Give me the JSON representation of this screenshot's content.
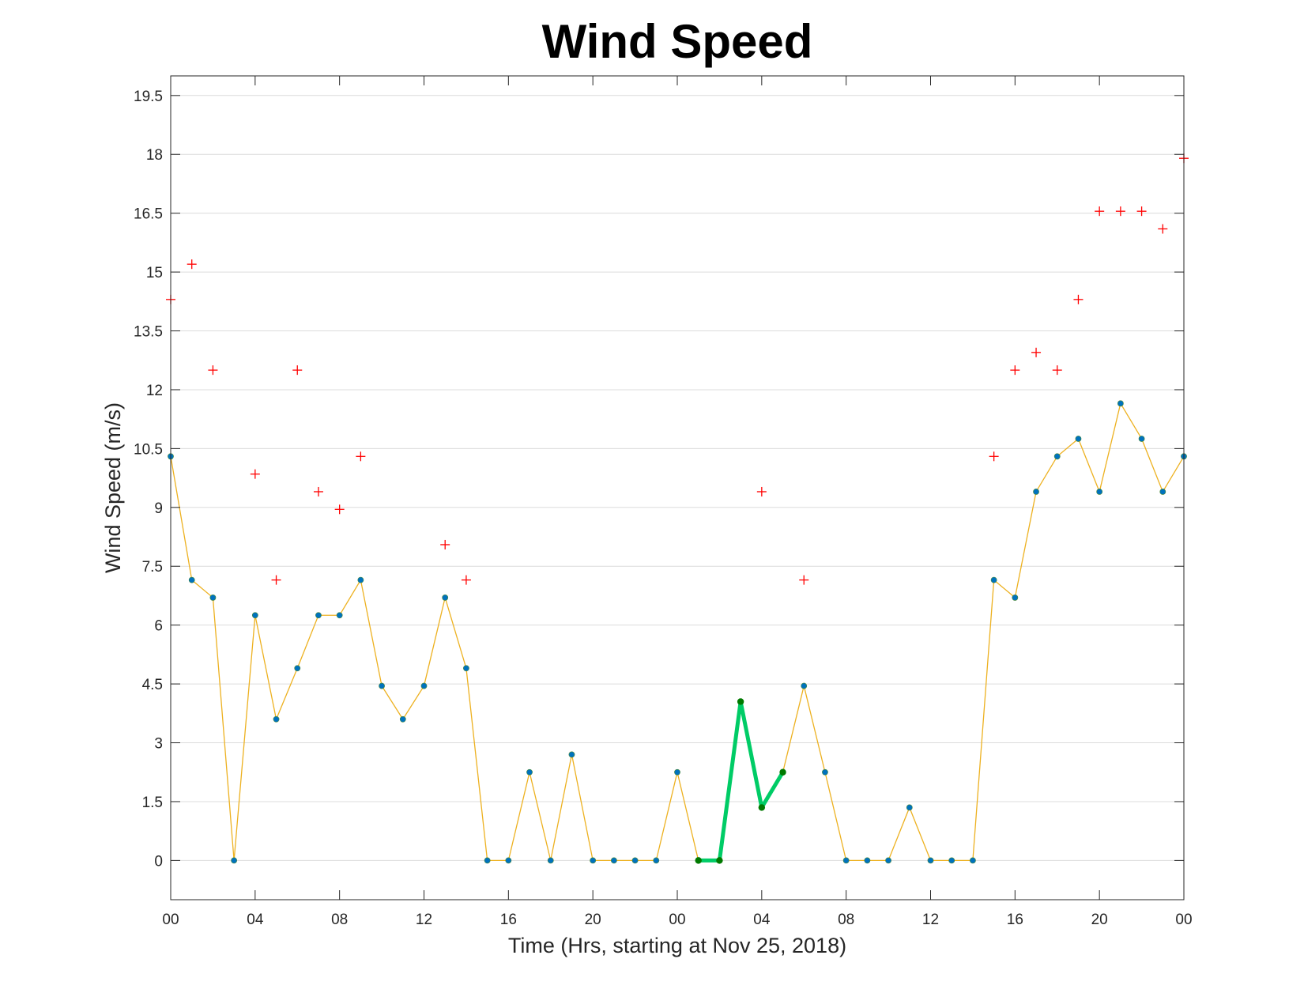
{
  "chart_data": {
    "type": "line",
    "title": "Wind Speed",
    "xlabel": "Time (Hrs, starting at Nov 25, 2018)",
    "ylabel": "Wind Speed (m/s)",
    "xlim": [
      0,
      48
    ],
    "ylim": [
      -1,
      20
    ],
    "x_ticks": [
      0,
      4,
      8,
      12,
      16,
      20,
      24,
      28,
      32,
      36,
      40,
      44,
      48
    ],
    "x_tick_labels": [
      "00",
      "04",
      "08",
      "12",
      "16",
      "20",
      "00",
      "04",
      "08",
      "12",
      "16",
      "20",
      "00"
    ],
    "y_ticks": [
      0,
      1.5,
      3,
      4.5,
      6,
      7.5,
      9,
      10.5,
      12,
      13.5,
      15,
      16.5,
      18,
      19.5
    ],
    "y_tick_labels": [
      "0",
      "1.5",
      "3",
      "4.5",
      "6",
      "7.5",
      "9",
      "10.5",
      "12",
      "13.5",
      "15",
      "16.5",
      "18",
      "19.5"
    ],
    "grid": true,
    "series": [
      {
        "style": "line-with-dots",
        "line_color": "#edb120",
        "marker_color": "#0072bd",
        "x": [
          0,
          1,
          2,
          3,
          4,
          5,
          6,
          7,
          8,
          9,
          10,
          11,
          12,
          13,
          14,
          15,
          16,
          17,
          18,
          19,
          20,
          21,
          22,
          23,
          24,
          25,
          26,
          27,
          28,
          29,
          30,
          31,
          32,
          33,
          34,
          35,
          36,
          37,
          38,
          39,
          40,
          41,
          42,
          43,
          44,
          45,
          46,
          47,
          48
        ],
        "values": [
          10.3,
          7.15,
          6.7,
          0,
          6.25,
          3.6,
          4.9,
          6.25,
          6.25,
          7.15,
          4.45,
          3.6,
          4.45,
          6.7,
          4.9,
          0,
          0,
          2.25,
          0,
          2.7,
          0,
          0,
          0,
          0,
          2.25,
          0,
          0,
          4.05,
          1.35,
          2.25,
          4.45,
          2.25,
          0,
          0,
          0,
          1.35,
          0,
          0,
          0,
          7.15,
          6.7,
          9.4,
          10.3,
          10.75,
          9.4,
          11.65,
          10.75,
          9.4,
          10.3
        ]
      },
      {
        "style": "plus-markers",
        "marker_color": "#ff0000",
        "x": [
          0,
          1,
          2,
          4,
          5,
          6,
          7,
          8,
          9,
          13,
          14,
          28,
          30,
          39,
          40,
          41,
          42,
          43,
          44,
          45,
          46,
          47,
          48
        ],
        "values": [
          14.3,
          15.2,
          12.5,
          9.85,
          7.15,
          12.5,
          9.4,
          8.95,
          10.3,
          8.05,
          7.15,
          9.4,
          7.15,
          10.3,
          12.5,
          12.95,
          12.5,
          14.3,
          16.55,
          16.55,
          16.55,
          16.1,
          17.9
        ]
      },
      {
        "style": "highlight",
        "line_color": "#00cc66",
        "marker_color": "#007a00",
        "x": [
          25,
          26,
          27,
          28,
          29
        ],
        "values": [
          0,
          0,
          4.05,
          1.35,
          2.25
        ]
      }
    ]
  }
}
